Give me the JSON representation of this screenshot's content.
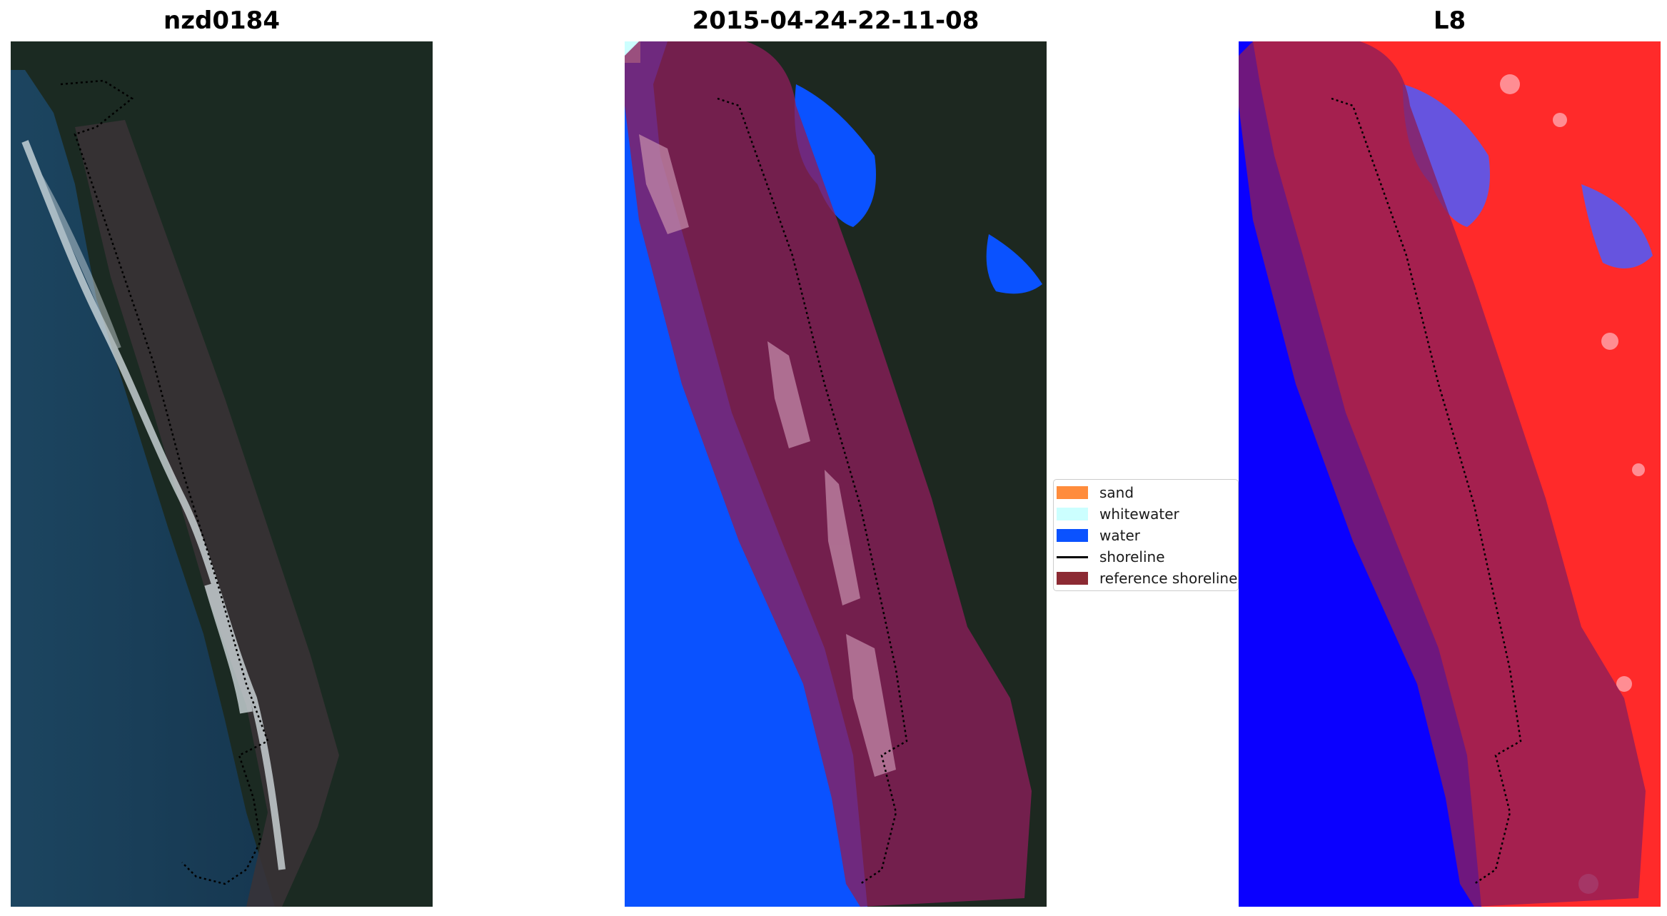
{
  "figure": {
    "panel_titles": [
      "nzd0184",
      "2015-04-24-22-11-08",
      "L8"
    ]
  },
  "legend": {
    "items": [
      {
        "label": "sand",
        "color": "#ff8c3c",
        "kind": "patch"
      },
      {
        "label": "whitewater",
        "color": "#ccffff",
        "kind": "patch"
      },
      {
        "label": "water",
        "color": "#0a52ff",
        "kind": "patch"
      },
      {
        "label": "shoreline",
        "color": "#000000",
        "kind": "line"
      },
      {
        "label": "reference shoreline buffer",
        "color": "#8c2a33",
        "kind": "patch"
      }
    ]
  },
  "colors": {
    "sea": "#183c54",
    "land": "#1d2820",
    "water_class": "#0a52ff",
    "buffer": "#8c1e3a",
    "index_positive": "#ff1e1e",
    "index_negative": "#0a00ff"
  }
}
